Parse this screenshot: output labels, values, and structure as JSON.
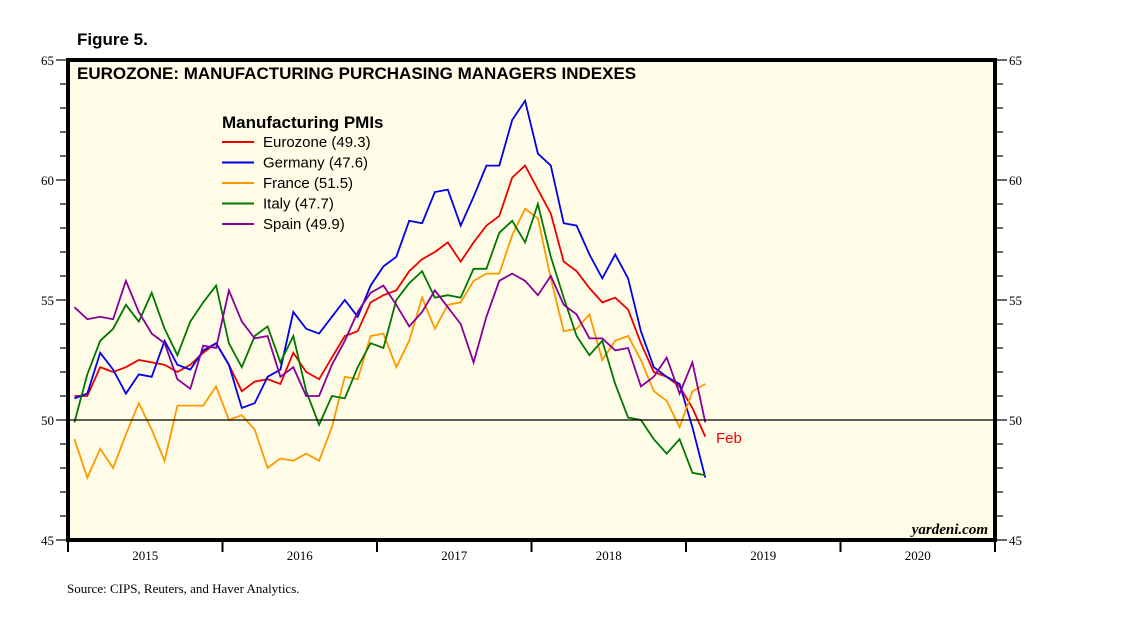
{
  "figure_label": "Figure 5.",
  "source": "Source: CIPS, Reuters, and Haver Analytics.",
  "watermark": "yardeni.com",
  "chart_data": {
    "type": "line",
    "title": "EUROZONE: MANUFACTURING PURCHASING MANAGERS INDEXES",
    "legend_title": "Manufacturing PMIs",
    "legend_position": "top-left",
    "xlabel": "",
    "ylabel": "",
    "ylim": [
      45,
      65
    ],
    "y_ticks": [
      45,
      50,
      55,
      60,
      65
    ],
    "x_tick_labels": [
      "2015",
      "2016",
      "2017",
      "2018",
      "2019",
      "2020"
    ],
    "x_range": [
      "2015-01",
      "2020-12"
    ],
    "reference_line": 50,
    "grid": false,
    "annotation": {
      "text": "Feb",
      "color": "#ee0000"
    },
    "start_month": "2015-01",
    "frequency": "monthly",
    "series": [
      {
        "name": "Eurozone",
        "latest": "49.3",
        "color": "#ee0000",
        "values": [
          51.0,
          51.0,
          52.2,
          52.0,
          52.2,
          52.5,
          52.4,
          52.3,
          52.0,
          52.3,
          52.8,
          53.2,
          52.3,
          51.2,
          51.6,
          51.7,
          51.5,
          52.8,
          52.0,
          51.7,
          52.6,
          53.5,
          53.7,
          54.9,
          55.2,
          55.4,
          56.2,
          56.7,
          57.0,
          57.4,
          56.6,
          57.4,
          58.1,
          58.5,
          60.1,
          60.6,
          59.6,
          58.6,
          56.6,
          56.2,
          55.5,
          54.9,
          55.1,
          54.6,
          53.2,
          52.0,
          51.8,
          51.4,
          50.5,
          49.3
        ]
      },
      {
        "name": "Germany",
        "latest": "47.6",
        "color": "#0000ee",
        "values": [
          50.9,
          51.1,
          52.8,
          52.1,
          51.1,
          51.9,
          51.8,
          53.3,
          52.3,
          52.1,
          52.9,
          53.2,
          52.3,
          50.5,
          50.7,
          51.8,
          52.1,
          54.5,
          53.8,
          53.6,
          54.3,
          55.0,
          54.3,
          55.6,
          56.4,
          56.8,
          58.3,
          58.2,
          59.5,
          59.6,
          58.1,
          59.3,
          60.6,
          60.6,
          62.5,
          63.3,
          61.1,
          60.6,
          58.2,
          58.1,
          56.9,
          55.9,
          56.9,
          55.9,
          53.7,
          52.2,
          51.8,
          51.5,
          49.7,
          47.6
        ]
      },
      {
        "name": "France",
        "latest": "51.5",
        "color": "#ff9900",
        "values": [
          49.2,
          47.6,
          48.8,
          48.0,
          49.4,
          50.7,
          49.6,
          48.3,
          50.6,
          50.6,
          50.6,
          51.4,
          50.0,
          50.2,
          49.6,
          48.0,
          48.4,
          48.3,
          48.6,
          48.3,
          49.7,
          51.8,
          51.7,
          53.5,
          53.6,
          52.2,
          53.3,
          55.1,
          53.8,
          54.8,
          54.9,
          55.8,
          56.1,
          56.1,
          57.7,
          58.8,
          58.4,
          55.9,
          53.7,
          53.8,
          54.4,
          52.5,
          53.3,
          53.5,
          52.5,
          51.2,
          50.8,
          49.7,
          51.2,
          51.5
        ]
      },
      {
        "name": "Italy",
        "latest": "47.7",
        "color": "#007700",
        "values": [
          49.9,
          51.9,
          53.3,
          53.8,
          54.8,
          54.1,
          55.3,
          53.8,
          52.7,
          54.1,
          54.9,
          55.6,
          53.2,
          52.2,
          53.5,
          53.9,
          52.4,
          53.5,
          51.2,
          49.8,
          51.0,
          50.9,
          52.2,
          53.2,
          53.0,
          55.0,
          55.7,
          56.2,
          55.1,
          55.2,
          55.1,
          56.3,
          56.3,
          57.8,
          58.3,
          57.4,
          59.0,
          56.8,
          55.1,
          53.5,
          52.7,
          53.3,
          51.5,
          50.1,
          50.0,
          49.2,
          48.6,
          49.2,
          47.8,
          47.7
        ]
      },
      {
        "name": "Spain",
        "latest": "49.9",
        "color": "#880099",
        "values": [
          54.7,
          54.2,
          54.3,
          54.2,
          55.8,
          54.5,
          53.6,
          53.2,
          51.7,
          51.3,
          53.1,
          53.0,
          55.4,
          54.1,
          53.4,
          53.5,
          51.8,
          52.2,
          51.0,
          51.0,
          52.3,
          53.3,
          54.5,
          55.3,
          55.6,
          54.8,
          53.9,
          54.5,
          55.4,
          54.7,
          54.0,
          52.4,
          54.3,
          55.8,
          56.1,
          55.8,
          55.2,
          56.0,
          54.8,
          54.4,
          53.4,
          53.4,
          52.9,
          53.0,
          51.4,
          51.8,
          52.6,
          51.1,
          52.4,
          49.9
        ]
      }
    ]
  }
}
